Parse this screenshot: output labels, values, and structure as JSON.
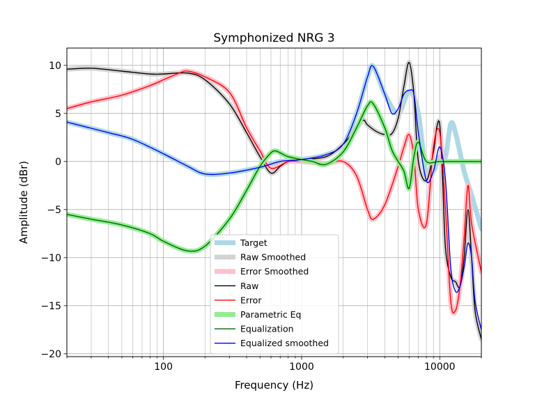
{
  "chart_data": {
    "type": "line",
    "title": "Symphonized NRG 3",
    "xlabel": "Frequency (Hz)",
    "ylabel": "Amplitude (dBr)",
    "xscale": "log",
    "xlim": [
      20,
      20000
    ],
    "ylim": [
      -20.3,
      11.8
    ],
    "x_ticks": [
      100,
      1000,
      10000
    ],
    "x_tick_labels": [
      "100",
      "1000",
      "10000"
    ],
    "y_ticks": [
      -20,
      -15,
      -10,
      -5,
      0,
      5,
      10
    ],
    "y_tick_labels": [
      "−20",
      "−15",
      "−10",
      "−5",
      "0",
      "5",
      "10"
    ],
    "grid": "major and minor (x), major (y)",
    "legend_position": "lower-center",
    "series": [
      {
        "name": "Target",
        "color": "#add8e6",
        "style": "thick",
        "x": [
          20,
          40,
          60,
          100,
          150,
          200,
          300,
          500,
          700,
          1000,
          1500,
          2000,
          2500,
          3000,
          3300,
          4000,
          5000,
          6000,
          7000,
          8000,
          9000,
          10000,
          11000,
          12000,
          13000,
          15000,
          17000,
          20000
        ],
        "y": [
          4.1,
          3.0,
          2.3,
          0.8,
          -0.5,
          -1.3,
          -1.2,
          -0.6,
          0,
          0.2,
          0.7,
          1.8,
          5.0,
          8.8,
          9.9,
          7.0,
          5.0,
          7.3,
          5.0,
          -1.5,
          -1.0,
          0.5,
          0.5,
          3.9,
          3.0,
          -1.0,
          -3.5,
          -7.0
        ]
      },
      {
        "name": "Raw Smoothed",
        "color": "#d3d3d3",
        "style": "thick",
        "x": [
          20,
          30,
          50,
          80,
          100,
          150,
          200,
          300,
          400,
          500,
          600,
          700,
          800,
          1000,
          1500,
          2000,
          2500,
          2800,
          3000,
          3500,
          4000,
          4500,
          5000,
          5500,
          6000,
          6500,
          7000,
          8000,
          9000,
          9500,
          10000,
          10500,
          11000,
          12000,
          13000,
          14000,
          15000,
          16000,
          17000,
          18000,
          20000
        ],
        "y": [
          9.6,
          9.7,
          9.4,
          9.1,
          9.1,
          9.2,
          8.5,
          6.0,
          3.0,
          0.5,
          -1.2,
          -0.5,
          0,
          0.2,
          0.5,
          1.8,
          3.5,
          4.3,
          3.8,
          3.1,
          2.8,
          2.9,
          4.5,
          7.8,
          10.3,
          7.0,
          0.0,
          -2.0,
          1.0,
          3.5,
          3.8,
          -2.0,
          -9.0,
          -12.0,
          -12.5,
          -13.0,
          -10.0,
          -5.0,
          -10.0,
          -15.5,
          -18.5
        ]
      },
      {
        "name": "Error Smoothed",
        "color": "#ffc0cb",
        "style": "thick",
        "x": [
          20,
          30,
          50,
          80,
          100,
          130,
          150,
          200,
          300,
          400,
          500,
          600,
          800,
          1000,
          1500,
          2000,
          2500,
          3000,
          3300,
          4000,
          5000,
          5500,
          6000,
          6500,
          7000,
          8000,
          9000,
          10000,
          11000,
          12000,
          13000,
          14000,
          15000,
          16000,
          17000,
          20000
        ],
        "y": [
          5.5,
          6.2,
          6.9,
          7.9,
          8.5,
          9.2,
          9.4,
          8.8,
          7.2,
          3.5,
          1.1,
          -0.7,
          0,
          0,
          -0.2,
          0,
          -1.5,
          -5.0,
          -6.0,
          -4.5,
          -0.5,
          1.5,
          2.8,
          0.5,
          -5.0,
          -6.5,
          1.5,
          3.0,
          -5.0,
          -14.5,
          -15.5,
          -13.0,
          -8.0,
          -2.5,
          -6.5,
          -11.5
        ]
      },
      {
        "name": "Raw",
        "color": "#000000",
        "style": "thin",
        "x": [
          20,
          30,
          50,
          80,
          100,
          150,
          200,
          300,
          400,
          500,
          600,
          700,
          800,
          1000,
          1500,
          2000,
          2500,
          2800,
          3000,
          3500,
          4000,
          4500,
          5000,
          5500,
          6000,
          6500,
          7000,
          8000,
          9000,
          9500,
          10000,
          10500,
          11000,
          12000,
          13000,
          14000,
          15000,
          16000,
          17000,
          18000,
          20000
        ],
        "y": [
          9.6,
          9.7,
          9.4,
          9.1,
          9.1,
          9.2,
          8.5,
          6.0,
          3.0,
          0.5,
          -1.2,
          -0.5,
          0,
          0.2,
          0.5,
          1.8,
          3.5,
          4.3,
          3.8,
          3.1,
          2.8,
          2.9,
          4.5,
          7.8,
          10.3,
          7.0,
          0.0,
          -2.0,
          1.0,
          3.5,
          3.8,
          -2.0,
          -9.0,
          -12.0,
          -12.5,
          -13.0,
          -10.0,
          -5.0,
          -10.0,
          -15.5,
          -18.5
        ]
      },
      {
        "name": "Error",
        "color": "#ff0000",
        "style": "thin",
        "x": [
          20,
          30,
          50,
          80,
          100,
          130,
          150,
          200,
          300,
          400,
          500,
          600,
          800,
          1000,
          1500,
          2000,
          2500,
          3000,
          3300,
          4000,
          5000,
          5500,
          6000,
          6500,
          7000,
          8000,
          9000,
          10000,
          11000,
          12000,
          13000,
          14000,
          15000,
          16000,
          17000,
          20000
        ],
        "y": [
          5.5,
          6.2,
          6.9,
          7.9,
          8.5,
          9.2,
          9.4,
          8.8,
          7.2,
          3.5,
          1.1,
          -0.7,
          0,
          0,
          -0.2,
          0,
          -1.5,
          -5.0,
          -6.0,
          -4.5,
          -0.5,
          1.5,
          2.8,
          0.5,
          -5.0,
          -6.5,
          1.5,
          3.0,
          -5.0,
          -14.5,
          -15.5,
          -13.0,
          -8.0,
          -2.5,
          -6.5,
          -11.5
        ]
      },
      {
        "name": "Parametric Eq",
        "color": "#90ee90",
        "style": "thick",
        "x": [
          20,
          30,
          50,
          80,
          100,
          150,
          200,
          300,
          400,
          500,
          600,
          650,
          700,
          800,
          1000,
          1200,
          1500,
          2000,
          2500,
          3000,
          3300,
          4000,
          4500,
          5000,
          5500,
          6000,
          6500,
          7000,
          8000,
          10000,
          15000,
          20000
        ],
        "y": [
          -5.5,
          -6.0,
          -6.6,
          -7.5,
          -8.3,
          -9.3,
          -8.8,
          -6.0,
          -3.0,
          -0.5,
          0.9,
          1.1,
          0.9,
          0.5,
          0.2,
          0.0,
          -0.3,
          1.0,
          3.5,
          5.8,
          6.0,
          3.5,
          1.2,
          0.0,
          -1.0,
          -2.8,
          0.5,
          2.0,
          0.0,
          0.0,
          0.0,
          0.0
        ]
      },
      {
        "name": "Equalization",
        "color": "#006400",
        "style": "thin",
        "x": [
          20,
          30,
          50,
          80,
          100,
          150,
          200,
          300,
          400,
          500,
          600,
          650,
          700,
          800,
          1000,
          1200,
          1500,
          2000,
          2500,
          3000,
          3300,
          4000,
          4500,
          5000,
          5500,
          6000,
          6500,
          7000,
          8000,
          10000,
          15000,
          20000
        ],
        "y": [
          -5.5,
          -6.0,
          -6.6,
          -7.5,
          -8.3,
          -9.3,
          -8.8,
          -6.0,
          -3.0,
          -0.5,
          0.9,
          1.1,
          0.9,
          0.5,
          0.2,
          0.0,
          -0.3,
          1.0,
          3.5,
          5.8,
          6.0,
          3.5,
          1.2,
          0.0,
          -1.0,
          -2.8,
          0.5,
          2.0,
          0.0,
          0.0,
          0.0,
          0.0
        ]
      },
      {
        "name": "Equalized smoothed",
        "color": "#0000ff",
        "style": "thin",
        "x": [
          20,
          40,
          60,
          100,
          150,
          200,
          300,
          500,
          700,
          1000,
          1500,
          2000,
          2500,
          3000,
          3300,
          4000,
          4500,
          5000,
          5500,
          6000,
          6500,
          7000,
          8000,
          9000,
          10000,
          11000,
          12000,
          13000,
          14000,
          15000,
          16000,
          17000,
          18000,
          20000
        ],
        "y": [
          4.1,
          3.0,
          2.3,
          0.8,
          -0.5,
          -1.3,
          -1.2,
          -0.6,
          0,
          0.2,
          0.7,
          1.8,
          5.0,
          8.8,
          9.9,
          7.0,
          5.0,
          5.5,
          7.0,
          7.4,
          7.0,
          3.0,
          -2.0,
          -1.0,
          1.5,
          -2.0,
          -11.0,
          -13.5,
          -13.0,
          -11.0,
          -8.5,
          -10.0,
          -14.5,
          -17.5
        ]
      }
    ]
  }
}
